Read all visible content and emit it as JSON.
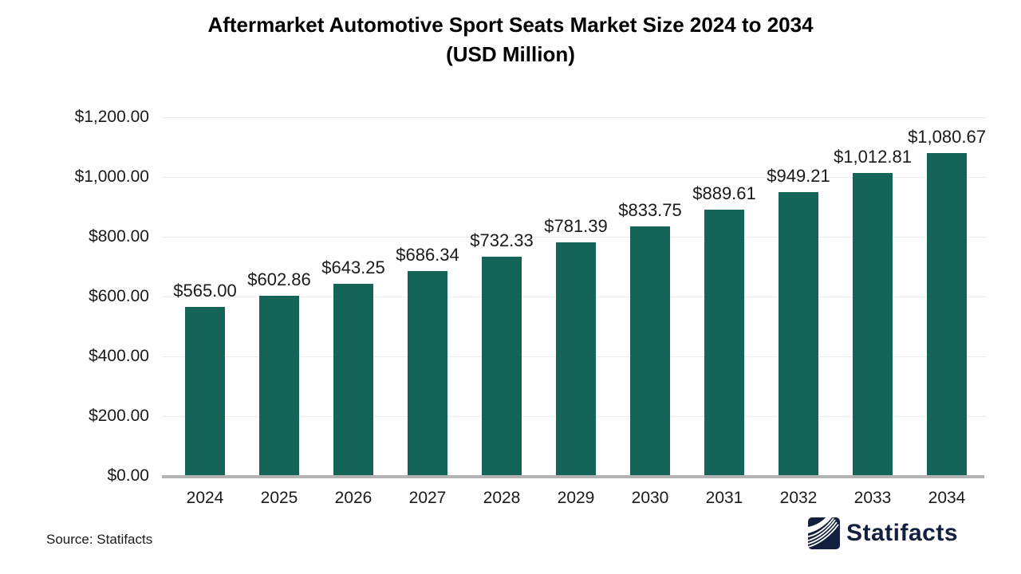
{
  "chart_data": {
    "type": "bar",
    "title": "Aftermarket Automotive Sport Seats Market Size 2024 to 2034",
    "subtitle": "(USD Million)",
    "unit": "USD Million",
    "categories": [
      "2024",
      "2025",
      "2026",
      "2027",
      "2028",
      "2029",
      "2030",
      "2031",
      "2032",
      "2033",
      "2034"
    ],
    "values": [
      565.0,
      602.86,
      643.25,
      686.34,
      732.33,
      781.39,
      833.75,
      889.61,
      949.21,
      1012.81,
      1080.67
    ],
    "bar_labels": [
      "$565.00",
      "$602.86",
      "$643.25",
      "$686.34",
      "$732.33",
      "$781.39",
      "$833.75",
      "$889.61",
      "$949.21",
      "$1,012.81",
      "$1,080.67"
    ],
    "xlabel": "",
    "ylabel": "",
    "ylim": [
      0,
      1200
    ],
    "yticks": [
      {
        "value": 0,
        "label": "$0.00"
      },
      {
        "value": 200,
        "label": "$200.00"
      },
      {
        "value": 400,
        "label": "$400.00"
      },
      {
        "value": 600,
        "label": "$600.00"
      },
      {
        "value": 800,
        "label": "$800.00"
      },
      {
        "value": 1000,
        "label": "$1,000.00"
      },
      {
        "value": 1200,
        "label": "$1,200.00"
      }
    ],
    "grid": "horizontal",
    "legend": "none",
    "colors": {
      "bar": "#156458",
      "gridline": "#ededed",
      "axis_line": "#b3b3b3",
      "text": "#1a1a1a",
      "background": "#ffffff"
    }
  },
  "footer": {
    "source": "Source: Statifacts",
    "brand": "Statifacts",
    "brand_color": "#131f3f"
  }
}
